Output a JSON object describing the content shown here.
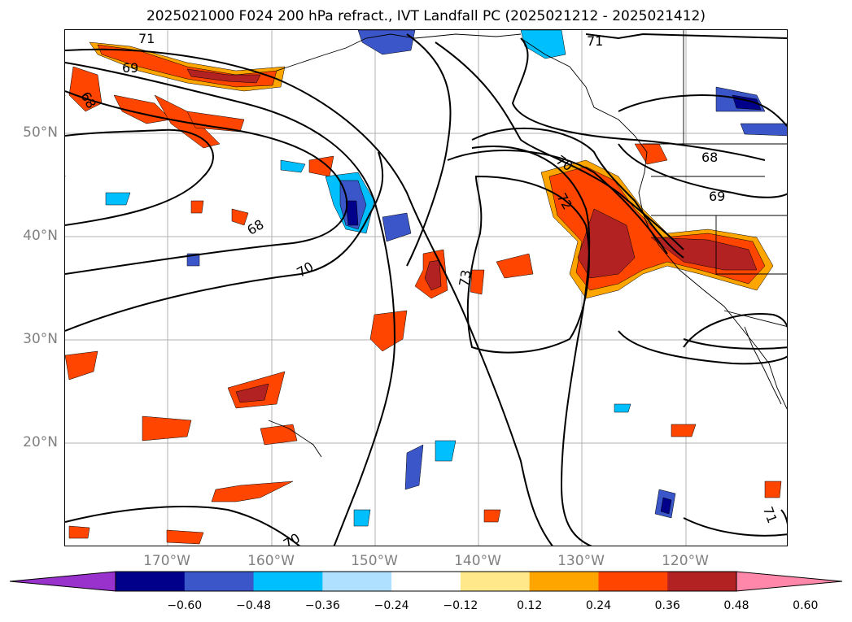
{
  "title": "2025021000 F024 200 hPa refract., IVT Landfall PC (2025021212 - 2025021412)",
  "lat_labels": [
    "50°N",
    "40°N",
    "30°N",
    "20°N"
  ],
  "lon_labels": [
    "170°W",
    "160°W",
    "150°W",
    "140°W",
    "130°W",
    "120°W"
  ],
  "contour_labels": [
    "71",
    "69",
    "68",
    "68",
    "70",
    "73",
    "70",
    "72",
    "68",
    "69",
    "71",
    "70",
    "71"
  ],
  "colorbar": {
    "ticks": [
      "−0.60",
      "−0.48",
      "−0.36",
      "−0.24",
      "−0.12",
      "0.12",
      "0.24",
      "0.36",
      "0.48",
      "0.60"
    ],
    "colors": [
      "#9932cc",
      "#00008b",
      "#3a56c9",
      "#00bfff",
      "#b0e0ff",
      "#ffffff",
      "#ffe88a",
      "#ffa500",
      "#ff4500",
      "#b22222",
      "#ff88aa"
    ]
  }
}
